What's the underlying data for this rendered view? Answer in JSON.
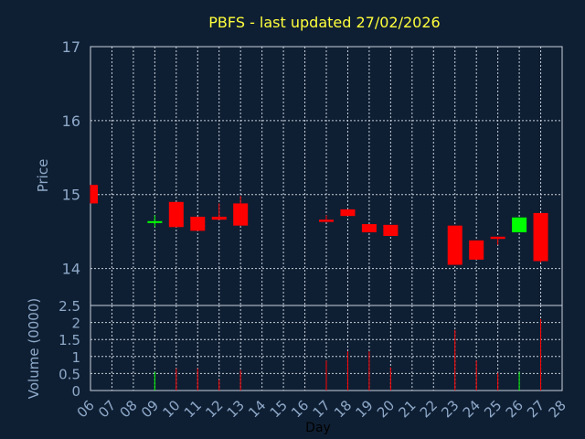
{
  "chart_data": {
    "type": "candlestick",
    "title": "PBFS - last updated 27/02/2026",
    "price_axis": {
      "label": "Price",
      "ylim": [
        13.5,
        17.0
      ],
      "ticks": [
        "14",
        "15",
        "16",
        "17"
      ]
    },
    "volume_axis": {
      "label": "Volume (0000)",
      "ylim": [
        0,
        2.5
      ],
      "ticks": [
        "0",
        "0.5",
        "1",
        "1.5",
        "2",
        "2.5"
      ]
    },
    "xlabel": "Day",
    "x_ticks": [
      "06",
      "07",
      "08",
      "09",
      "10",
      "11",
      "12",
      "13",
      "14",
      "15",
      "16",
      "17",
      "18",
      "19",
      "20",
      "21",
      "22",
      "23",
      "24",
      "25",
      "26",
      "27",
      "28"
    ],
    "grid": true,
    "colors": {
      "up": "#00ff00",
      "down": "#ff0000",
      "title": "#ffff3c",
      "axis_text": "#8ea9c9",
      "background": "#0f1f33"
    },
    "candles": [
      {
        "day": "06",
        "open": 15.13,
        "high": 15.13,
        "low": 14.88,
        "close": 14.88,
        "volume": 0.0
      },
      {
        "day": "09",
        "open": 14.62,
        "high": 14.72,
        "low": 14.56,
        "close": 14.64,
        "volume": 0.55
      },
      {
        "day": "10",
        "open": 14.9,
        "high": 14.9,
        "low": 14.56,
        "close": 14.56,
        "volume": 0.65
      },
      {
        "day": "11",
        "open": 14.7,
        "high": 14.7,
        "low": 14.51,
        "close": 14.51,
        "volume": 0.65
      },
      {
        "day": "12",
        "open": 14.7,
        "high": 14.88,
        "low": 14.66,
        "close": 14.66,
        "volume": 0.32
      },
      {
        "day": "13",
        "open": 14.88,
        "high": 14.98,
        "low": 14.58,
        "close": 14.58,
        "volume": 0.6
      },
      {
        "day": "17",
        "open": 14.66,
        "high": 14.72,
        "low": 14.63,
        "close": 14.63,
        "volume": 0.88
      },
      {
        "day": "18",
        "open": 14.8,
        "high": 14.8,
        "low": 14.71,
        "close": 14.71,
        "volume": 1.15
      },
      {
        "day": "19",
        "open": 14.6,
        "high": 14.6,
        "low": 14.49,
        "close": 14.49,
        "volume": 1.15
      },
      {
        "day": "20",
        "open": 14.59,
        "high": 14.59,
        "low": 14.44,
        "close": 14.44,
        "volume": 0.68
      },
      {
        "day": "23",
        "open": 14.58,
        "high": 14.58,
        "low": 14.05,
        "close": 14.05,
        "volume": 1.78
      },
      {
        "day": "24",
        "open": 14.38,
        "high": 14.38,
        "low": 14.12,
        "close": 14.12,
        "volume": 0.88
      },
      {
        "day": "25",
        "open": 14.43,
        "high": 14.43,
        "low": 14.32,
        "close": 14.4,
        "volume": 0.52
      },
      {
        "day": "26",
        "open": 14.49,
        "high": 14.69,
        "low": 14.49,
        "close": 14.69,
        "volume": 0.55
      },
      {
        "day": "27",
        "open": 14.75,
        "high": 14.75,
        "low": 14.08,
        "close": 14.1,
        "volume": 2.1
      }
    ]
  }
}
